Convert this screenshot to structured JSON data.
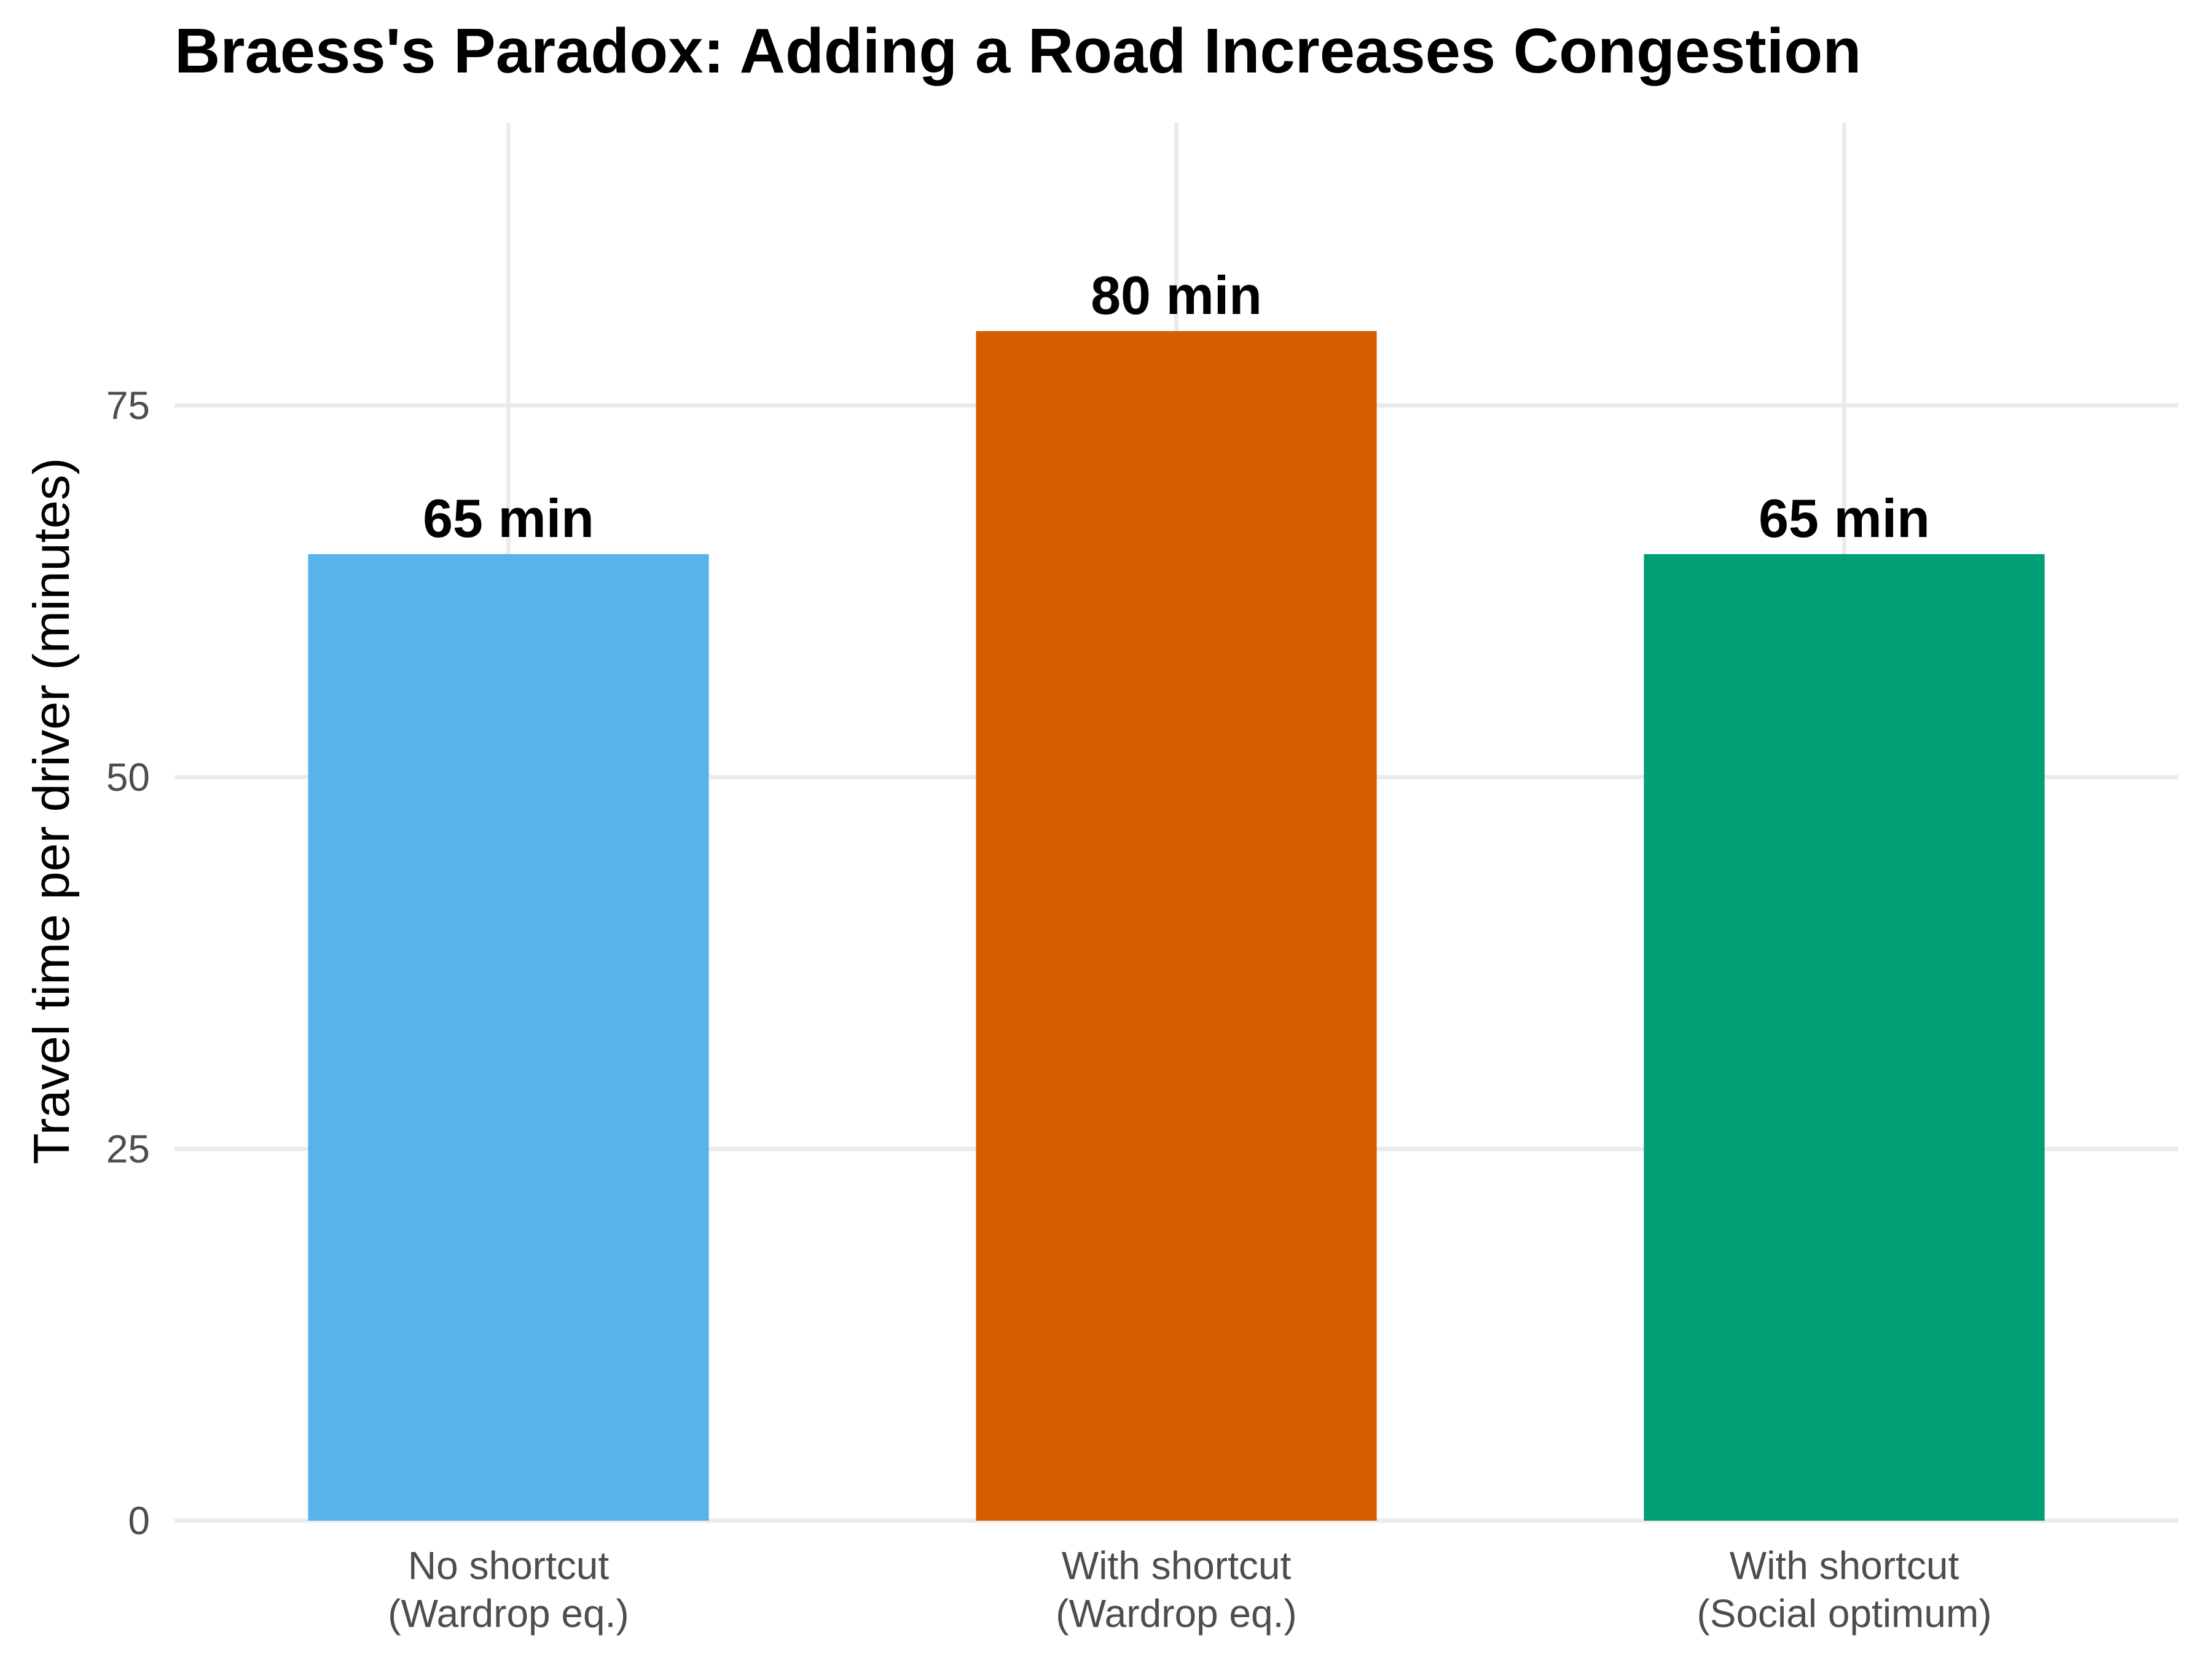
{
  "chart_data": {
    "type": "bar",
    "title": "Braess's Paradox: Adding a Road Increases Congestion",
    "xlabel": "",
    "ylabel": "Travel time per driver (minutes)",
    "categories": [
      [
        "No shortcut",
        "(Wardrop eq.)"
      ],
      [
        "With shortcut",
        "(Wardrop eq.)"
      ],
      [
        "With shortcut",
        "(Social optimum)"
      ]
    ],
    "values": [
      65,
      80,
      65
    ],
    "data_labels": [
      "65 min",
      "80 min",
      "65 min"
    ],
    "colors": [
      "#56B4E9",
      "#D55E00",
      "#009E73"
    ],
    "ylim": [
      0,
      94
    ],
    "yticks": [
      0,
      25,
      50,
      75
    ],
    "grid": true,
    "legend": "none"
  }
}
